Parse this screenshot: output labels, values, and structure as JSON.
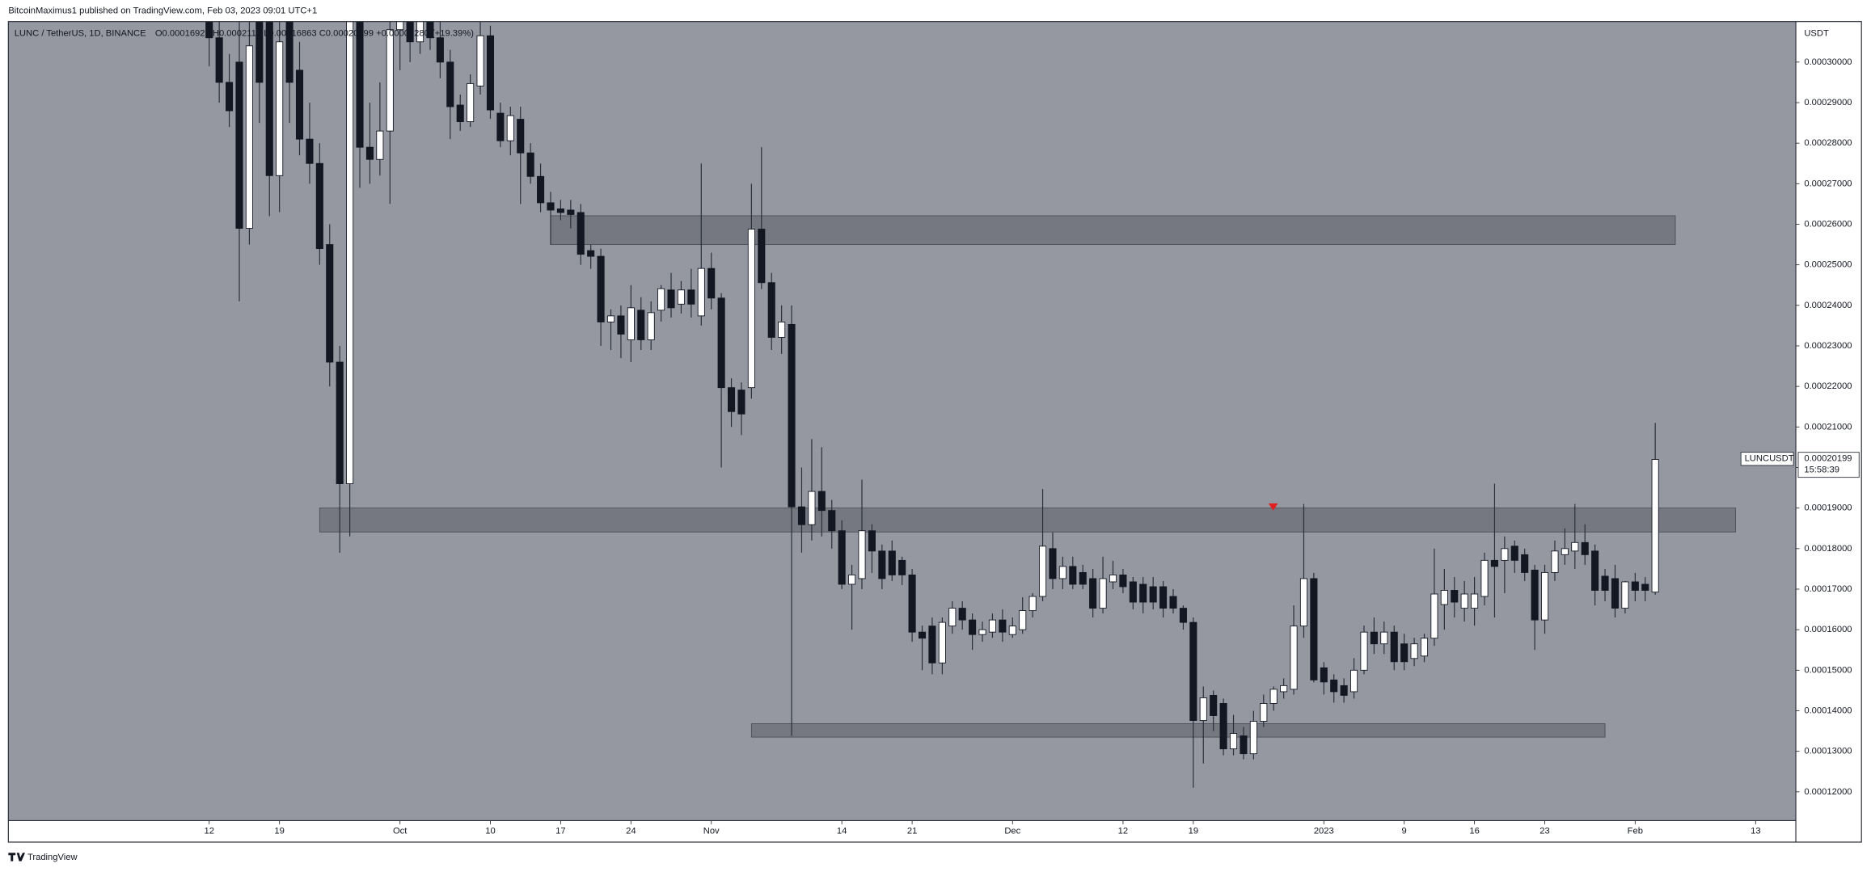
{
  "header": {
    "publisher": "BitcoinMaximus1 published on TradingView.com, Feb 03, 2023 09:01 UTC+1",
    "symbol": "LUNC / TetherUS, 1D, BINANCE",
    "ohlc_text": "O0.00016927 H0.0002110 L0.00016863 C0.00020199 +0.00003280 (+19.39%)",
    "currency": "USDT",
    "footer": "TradingView"
  },
  "chart_data": {
    "type": "candlestick",
    "x": [
      "2022-09-12",
      "2022-09-13",
      "2022-09-14",
      "2022-09-15",
      "2022-09-16",
      "2022-09-17",
      "2022-09-18",
      "2022-09-19",
      "2022-09-20",
      "2022-09-21",
      "2022-09-22",
      "2022-09-23",
      "2022-09-24",
      "2022-09-25",
      "2022-09-26",
      "2022-09-27",
      "2022-09-28",
      "2022-09-29",
      "2022-09-30",
      "2022-10-01",
      "2022-10-02",
      "2022-10-03",
      "2022-10-04",
      "2022-10-05",
      "2022-10-06",
      "2022-10-07",
      "2022-10-08",
      "2022-10-09",
      "2022-10-10",
      "2022-10-11",
      "2022-10-12",
      "2022-10-13",
      "2022-10-14",
      "2022-10-15",
      "2022-10-16",
      "2022-10-17",
      "2022-10-18",
      "2022-10-19",
      "2022-10-20",
      "2022-10-21",
      "2022-10-22",
      "2022-10-23",
      "2022-10-24",
      "2022-10-25",
      "2022-10-26",
      "2022-10-27",
      "2022-10-28",
      "2022-10-29",
      "2022-10-30",
      "2022-10-31",
      "2022-11-01",
      "2022-11-02",
      "2022-11-03",
      "2022-11-04",
      "2022-11-05",
      "2022-11-06",
      "2022-11-07",
      "2022-11-08",
      "2022-11-09",
      "2022-11-10",
      "2022-11-11",
      "2022-11-12",
      "2022-11-13",
      "2022-11-14",
      "2022-11-15",
      "2022-11-16",
      "2022-11-17",
      "2022-11-18",
      "2022-11-19",
      "2022-11-20",
      "2022-11-21",
      "2022-11-22",
      "2022-11-23",
      "2022-11-24",
      "2022-11-25",
      "2022-11-26",
      "2022-11-27",
      "2022-11-28",
      "2022-11-29",
      "2022-11-30",
      "2022-12-01",
      "2022-12-02",
      "2022-12-03",
      "2022-12-04",
      "2022-12-05",
      "2022-12-06",
      "2022-12-07",
      "2022-12-08",
      "2022-12-09",
      "2022-12-10",
      "2022-12-11",
      "2022-12-12",
      "2022-12-13",
      "2022-12-14",
      "2022-12-15",
      "2022-12-16",
      "2022-12-17",
      "2022-12-18",
      "2022-12-19",
      "2022-12-20",
      "2022-12-21",
      "2022-12-22",
      "2022-12-23",
      "2022-12-24",
      "2022-12-25",
      "2022-12-26",
      "2022-12-27",
      "2022-12-28",
      "2022-12-29",
      "2022-12-30",
      "2022-12-31",
      "2023-01-01",
      "2023-01-02",
      "2023-01-03",
      "2023-01-04",
      "2023-01-05",
      "2023-01-06",
      "2023-01-07",
      "2023-01-08",
      "2023-01-09",
      "2023-01-10",
      "2023-01-11",
      "2023-01-12",
      "2023-01-13",
      "2023-01-14",
      "2023-01-15",
      "2023-01-16",
      "2023-01-17",
      "2023-01-18",
      "2023-01-19",
      "2023-01-20",
      "2023-01-21",
      "2023-01-22",
      "2023-01-23",
      "2023-01-24",
      "2023-01-25",
      "2023-01-26",
      "2023-01-27",
      "2023-01-28",
      "2023-01-29",
      "2023-01-30",
      "2023-01-31",
      "2023-02-01",
      "2023-02-02",
      "2023-02-03"
    ],
    "ohlc": [
      [
        0.000315,
        0.00032,
        0.000299,
        0.000306
      ],
      [
        0.000306,
        0.00031,
        0.00029,
        0.000295
      ],
      [
        0.000295,
        0.000302,
        0.000284,
        0.000288
      ],
      [
        0.0003,
        0.00031,
        0.000241,
        0.000259
      ],
      [
        0.000259,
        0.00031,
        0.000255,
        0.000304
      ],
      [
        0.00031,
        0.000315,
        0.000285,
        0.000295
      ],
      [
        0.00031,
        0.000315,
        0.000262,
        0.000272
      ],
      [
        0.000272,
        0.00031,
        0.000263,
        0.000305
      ],
      [
        0.00031,
        0.000315,
        0.000285,
        0.000295
      ],
      [
        0.000298,
        0.000305,
        0.000277,
        0.000281
      ],
      [
        0.000281,
        0.00029,
        0.00027,
        0.000275
      ],
      [
        0.000275,
        0.00028,
        0.00025,
        0.000254
      ],
      [
        0.000255,
        0.00026,
        0.00022,
        0.000226
      ],
      [
        0.000226,
        0.00023,
        0.000179,
        0.000196
      ],
      [
        0.000196,
        0.00031,
        0.000183,
        0.00031
      ],
      [
        0.00031,
        0.000315,
        0.000269,
        0.000279
      ],
      [
        0.000279,
        0.00029,
        0.00027,
        0.000276
      ],
      [
        0.000276,
        0.000295,
        0.000272,
        0.000283
      ],
      [
        0.000283,
        0.00031,
        0.000265,
        0.000308
      ],
      [
        0.000308,
        0.000315,
        0.000298,
        0.000312
      ],
      [
        0.000312,
        0.000315,
        0.0003,
        0.000305
      ],
      [
        0.000305,
        0.000315,
        0.000302,
        0.00031
      ],
      [
        0.00031,
        0.000315,
        0.000303,
        0.000306
      ],
      [
        0.000306,
        0.00031,
        0.000296,
        0.0003
      ],
      [
        0.0003,
        0.000303,
        0.000281,
        0.000289
      ],
      [
        0.0002894,
        0.000292,
        0.000283,
        0.0002853
      ],
      [
        0.0002853,
        0.000297,
        0.000284,
        0.0002947
      ],
      [
        0.0002941,
        0.00031,
        0.000292,
        0.0003065
      ],
      [
        0.0003065,
        0.000309,
        0.000286,
        0.0002882
      ],
      [
        0.0002874,
        0.00029,
        0.000279,
        0.0002806
      ],
      [
        0.0002806,
        0.000289,
        0.000277,
        0.0002868
      ],
      [
        0.0002859,
        0.000289,
        0.000265,
        0.0002776
      ],
      [
        0.0002776,
        0.00028,
        0.00027,
        0.0002718
      ],
      [
        0.0002718,
        0.000275,
        0.000263,
        0.0002653
      ],
      [
        0.0002653,
        0.000268,
        0.000255,
        0.0002635
      ],
      [
        0.0002638,
        0.000266,
        0.000261,
        0.0002629
      ],
      [
        0.0002635,
        0.000266,
        0.000259,
        0.0002624
      ],
      [
        0.0002629,
        0.000265,
        0.00025,
        0.0002526
      ],
      [
        0.0002535,
        0.000255,
        0.000249,
        0.0002521
      ],
      [
        0.0002521,
        0.000254,
        0.00023,
        0.0002359
      ],
      [
        0.0002359,
        0.000239,
        0.000229,
        0.0002374
      ],
      [
        0.0002374,
        0.00024,
        0.000227,
        0.0002329
      ],
      [
        0.0002315,
        0.000245,
        0.000226,
        0.0002394
      ],
      [
        0.0002388,
        0.000242,
        0.000229,
        0.0002315
      ],
      [
        0.0002315,
        0.000241,
        0.000229,
        0.0002382
      ],
      [
        0.0002388,
        0.000245,
        0.000236,
        0.0002441
      ],
      [
        0.0002438,
        0.000248,
        0.000237,
        0.0002394
      ],
      [
        0.0002403,
        0.000246,
        0.000238,
        0.0002438
      ],
      [
        0.0002438,
        0.000249,
        0.000237,
        0.0002403
      ],
      [
        0.0002374,
        0.000275,
        0.000235,
        0.0002491
      ],
      [
        0.0002491,
        0.000253,
        0.000239,
        0.0002418
      ],
      [
        0.0002418,
        0.000243,
        0.0002,
        0.0002197
      ],
      [
        0.0002197,
        0.000222,
        0.00021,
        0.0002138
      ],
      [
        0.0002191,
        0.000221,
        0.000208,
        0.0002132
      ],
      [
        0.0002197,
        0.00027,
        0.000217,
        0.0002588
      ],
      [
        0.0002588,
        0.000279,
        0.000244,
        0.0002456
      ],
      [
        0.0002456,
        0.000248,
        0.000229,
        0.0002321
      ],
      [
        0.0002321,
        0.00024,
        0.000228,
        0.0002359
      ],
      [
        0.0002353,
        0.00024,
        0.0001338,
        0.0001903
      ],
      [
        0.0001903,
        0.0002,
        0.000179,
        0.0001859
      ],
      [
        0.0001859,
        0.000207,
        0.000182,
        0.0001941
      ],
      [
        0.0001941,
        0.000205,
        0.000183,
        0.0001894
      ],
      [
        0.0001894,
        0.000192,
        0.00018,
        0.0001844
      ],
      [
        0.0001844,
        0.000187,
        0.00017,
        0.0001712
      ],
      [
        0.0001712,
        0.000176,
        0.00016,
        0.0001735
      ],
      [
        0.0001726,
        0.000197,
        0.00017,
        0.0001844
      ],
      [
        0.0001844,
        0.000186,
        0.000174,
        0.0001794
      ],
      [
        0.0001794,
        0.000181,
        0.00017,
        0.0001726
      ],
      [
        0.0001794,
        0.000182,
        0.000172,
        0.0001735
      ],
      [
        0.0001771,
        0.000178,
        0.000171,
        0.0001735
      ],
      [
        0.0001735,
        0.000175,
        0.000157,
        0.0001594
      ],
      [
        0.0001594,
        0.000161,
        0.00015,
        0.0001579
      ],
      [
        0.0001609,
        0.000163,
        0.000149,
        0.0001518
      ],
      [
        0.0001518,
        0.000163,
        0.000149,
        0.0001618
      ],
      [
        0.0001609,
        0.000167,
        0.000159,
        0.0001653
      ],
      [
        0.0001653,
        0.000167,
        0.00016,
        0.0001624
      ],
      [
        0.0001624,
        0.000164,
        0.000155,
        0.0001588
      ],
      [
        0.0001588,
        0.000162,
        0.000157,
        0.00016
      ],
      [
        0.0001594,
        0.000164,
        0.000158,
        0.0001624
      ],
      [
        0.0001624,
        0.000165,
        0.000157,
        0.0001594
      ],
      [
        0.0001588,
        0.000163,
        0.000158,
        0.0001609
      ],
      [
        0.00016,
        0.000168,
        0.000159,
        0.0001647
      ],
      [
        0.0001647,
        0.000169,
        0.000163,
        0.0001682
      ],
      [
        0.0001682,
        0.0001947,
        0.000167,
        0.0001806
      ],
      [
        0.00018,
        0.000184,
        0.00017,
        0.0001726
      ],
      [
        0.0001726,
        0.000178,
        0.00017,
        0.0001756
      ],
      [
        0.0001756,
        0.000178,
        0.00017,
        0.0001712
      ],
      [
        0.0001741,
        0.000176,
        0.00017,
        0.0001712
      ],
      [
        0.0001726,
        0.000175,
        0.000163,
        0.0001653
      ],
      [
        0.0001653,
        0.000178,
        0.000164,
        0.0001726
      ],
      [
        0.0001718,
        0.000177,
        0.00017,
        0.0001735
      ],
      [
        0.0001735,
        0.000175,
        0.000169,
        0.0001706
      ],
      [
        0.0001718,
        0.000173,
        0.000165,
        0.0001668
      ],
      [
        0.0001712,
        0.000173,
        0.000164,
        0.0001668
      ],
      [
        0.0001706,
        0.000173,
        0.000165,
        0.0001668
      ],
      [
        0.0001706,
        0.000172,
        0.000163,
        0.0001653
      ],
      [
        0.0001682,
        0.00017,
        0.000164,
        0.0001653
      ],
      [
        0.0001653,
        0.000166,
        0.00016,
        0.0001618
      ],
      [
        0.0001618,
        0.000163,
        0.000121,
        0.0001376
      ],
      [
        0.0001376,
        0.000146,
        0.000127,
        0.0001432
      ],
      [
        0.0001438,
        0.000145,
        0.000135,
        0.0001388
      ],
      [
        0.0001418,
        0.000143,
        0.000129,
        0.0001306
      ],
      [
        0.0001306,
        0.000139,
        0.000129,
        0.0001344
      ],
      [
        0.0001338,
        0.000136,
        0.000128,
        0.0001294
      ],
      [
        0.0001294,
        0.00014,
        0.000128,
        0.0001374
      ],
      [
        0.0001374,
        0.000144,
        0.000136,
        0.0001418
      ],
      [
        0.0001418,
        0.000146,
        0.00014,
        0.0001453
      ],
      [
        0.0001447,
        0.000148,
        0.000143,
        0.0001462
      ],
      [
        0.0001453,
        0.000166,
        0.000144,
        0.0001609
      ],
      [
        0.0001609,
        0.000191,
        0.000158,
        0.0001726
      ],
      [
        0.0001726,
        0.000174,
        0.000147,
        0.0001476
      ],
      [
        0.0001506,
        0.000152,
        0.000144,
        0.0001471
      ],
      [
        0.0001476,
        0.000149,
        0.000142,
        0.0001447
      ],
      [
        0.0001462,
        0.000148,
        0.000142,
        0.0001438
      ],
      [
        0.0001447,
        0.000153,
        0.000143,
        0.00015
      ],
      [
        0.00015,
        0.000161,
        0.000149,
        0.0001594
      ],
      [
        0.0001594,
        0.000163,
        0.000154,
        0.0001565
      ],
      [
        0.0001565,
        0.000162,
        0.000154,
        0.0001594
      ],
      [
        0.0001594,
        0.000161,
        0.00015,
        0.0001521
      ],
      [
        0.0001565,
        0.000159,
        0.00015,
        0.0001521
      ],
      [
        0.0001529,
        0.000158,
        0.000151,
        0.0001565
      ],
      [
        0.0001535,
        0.000159,
        0.000152,
        0.0001579
      ],
      [
        0.0001579,
        0.00018,
        0.000156,
        0.0001688
      ],
      [
        0.0001662,
        0.000175,
        0.00016,
        0.0001697
      ],
      [
        0.0001697,
        0.000173,
        0.000163,
        0.0001668
      ],
      [
        0.0001653,
        0.000172,
        0.000162,
        0.0001688
      ],
      [
        0.0001653,
        0.000173,
        0.000161,
        0.0001688
      ],
      [
        0.0001682,
        0.000179,
        0.000166,
        0.0001771
      ],
      [
        0.0001771,
        0.000196,
        0.000163,
        0.0001756
      ],
      [
        0.0001771,
        0.000183,
        0.000169,
        0.00018
      ],
      [
        0.0001806,
        0.000182,
        0.000174,
        0.0001771
      ],
      [
        0.0001785,
        0.00018,
        0.000172,
        0.0001741
      ],
      [
        0.0001747,
        0.000176,
        0.000155,
        0.0001624
      ],
      [
        0.0001624,
        0.000176,
        0.000159,
        0.0001741
      ],
      [
        0.0001741,
        0.000182,
        0.000172,
        0.0001794
      ],
      [
        0.0001785,
        0.000185,
        0.000176,
        0.00018
      ],
      [
        0.0001794,
        0.000191,
        0.000175,
        0.0001815
      ],
      [
        0.0001815,
        0.000186,
        0.000176,
        0.0001785
      ],
      [
        0.0001794,
        0.000181,
        0.000166,
        0.0001697
      ],
      [
        0.0001732,
        0.000175,
        0.000167,
        0.0001697
      ],
      [
        0.0001726,
        0.000176,
        0.000163,
        0.0001653
      ],
      [
        0.0001653,
        0.000172,
        0.000164,
        0.0001718
      ],
      [
        0.0001718,
        0.000174,
        0.000167,
        0.0001697
      ],
      [
        0.0001712,
        0.000173,
        0.000167,
        0.0001697
      ],
      [
        0.00016927,
        0.000211,
        0.00016863,
        0.00020199
      ]
    ],
    "body_colors": {
      "up": "#ffffff",
      "down": "#131722"
    },
    "wick_color": "#2a2e39",
    "zones": [
      {
        "x": [
          "2022-10-16",
          "2023-02-05"
        ],
        "y": [
          0.000255,
          0.0002621
        ]
      },
      {
        "x": [
          "2022-09-23",
          "2023-02-11"
        ],
        "y": [
          0.0001841,
          0.00019
        ]
      },
      {
        "x": [
          "2022-11-05",
          "2023-01-29"
        ],
        "y": [
          0.0001335,
          0.0001368
        ]
      }
    ],
    "zone_color": "#5d5f68",
    "xlim": [
      "2022-08-23",
      "2023-02-17"
    ],
    "ylim": [
      0.0001129,
      0.00031
    ],
    "xticks": [
      {
        "value": "2022-09-12",
        "label": "12"
      },
      {
        "value": "2022-09-19",
        "label": "19"
      },
      {
        "value": "2022-10-01",
        "label": "Oct"
      },
      {
        "value": "2022-10-10",
        "label": "10"
      },
      {
        "value": "2022-10-17",
        "label": "17"
      },
      {
        "value": "2022-10-24",
        "label": "24"
      },
      {
        "value": "2022-11-01",
        "label": "Nov"
      },
      {
        "value": "2022-11-14",
        "label": "14"
      },
      {
        "value": "2022-11-21",
        "label": "21"
      },
      {
        "value": "2022-12-01",
        "label": "Dec"
      },
      {
        "value": "2022-12-12",
        "label": "12"
      },
      {
        "value": "2022-12-19",
        "label": "19"
      },
      {
        "value": "2023-01-01",
        "label": "2023"
      },
      {
        "value": "2023-01-09",
        "label": "9"
      },
      {
        "value": "2023-01-16",
        "label": "16"
      },
      {
        "value": "2023-01-23",
        "label": "23"
      },
      {
        "value": "2023-02-01",
        "label": "Feb"
      },
      {
        "value": "2023-02-13",
        "label": "13"
      }
    ],
    "yticks": [
      {
        "value": 0.0003,
        "label": "0.00030000"
      },
      {
        "value": 0.00029,
        "label": "0.00029000"
      },
      {
        "value": 0.00028,
        "label": "0.00028000"
      },
      {
        "value": 0.00027,
        "label": "0.00027000"
      },
      {
        "value": 0.00026,
        "label": "0.00026000"
      },
      {
        "value": 0.00025,
        "label": "0.00025000"
      },
      {
        "value": 0.00024,
        "label": "0.00024000"
      },
      {
        "value": 0.00023,
        "label": "0.00023000"
      },
      {
        "value": 0.00022,
        "label": "0.00022000"
      },
      {
        "value": 0.00021,
        "label": "0.00021000"
      },
      {
        "value": 0.0002,
        "label": "0.00020000"
      },
      {
        "value": 0.00019,
        "label": "0.00019000"
      },
      {
        "value": 0.00018,
        "label": "0.00018000"
      },
      {
        "value": 0.00017,
        "label": "0.00017000"
      },
      {
        "value": 0.00016,
        "label": "0.00016000"
      },
      {
        "value": 0.00015,
        "label": "0.00015000"
      },
      {
        "value": 0.00014,
        "label": "0.00014000"
      },
      {
        "value": 0.00013,
        "label": "0.00013000"
      },
      {
        "value": 0.00012,
        "label": "0.00012000"
      }
    ],
    "last_price": {
      "value": 0.00020199,
      "symbol": "LUNCUSDT",
      "label": "0.00020199",
      "countdown": "15:58:39"
    },
    "background": "#9598a1",
    "grid": false
  }
}
